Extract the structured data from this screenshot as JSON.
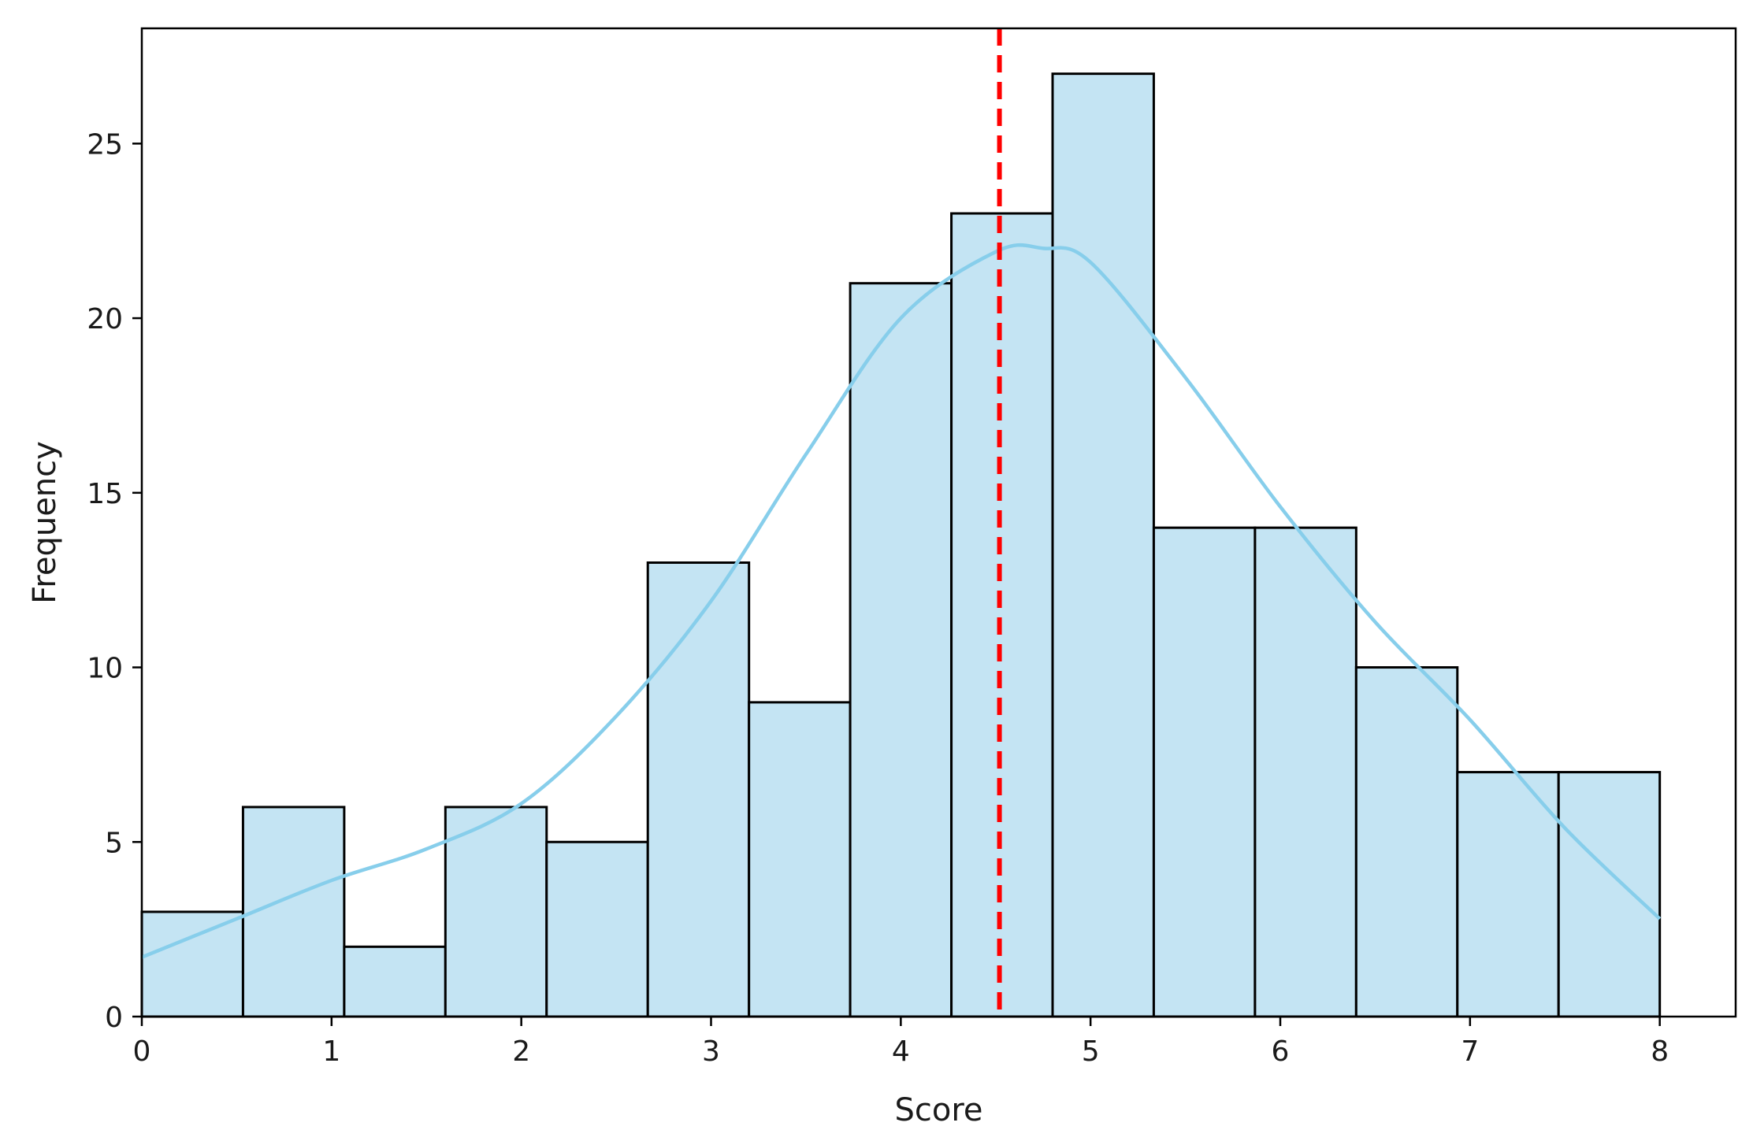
{
  "chart_data": {
    "type": "bar",
    "subtype": "histogram",
    "title": "",
    "xlabel": "Score",
    "ylabel": "Frequency",
    "xlim": [
      0,
      8.4
    ],
    "ylim": [
      0,
      28.3
    ],
    "xticks": [
      0,
      1,
      2,
      3,
      4,
      5,
      6,
      7,
      8
    ],
    "yticks": [
      0,
      5,
      10,
      15,
      20,
      25
    ],
    "bin_edges": [
      0,
      0.5333,
      1.0667,
      1.6,
      2.1333,
      2.6667,
      3.2,
      3.7333,
      4.2667,
      4.8,
      5.3333,
      5.8667,
      6.4,
      6.9333,
      7.4667,
      8.0
    ],
    "counts": [
      3,
      6,
      2,
      6,
      5,
      13,
      9,
      21,
      23,
      27,
      14,
      14,
      10,
      7,
      7
    ],
    "bar_fill": "#c4e4f3",
    "bar_edge": "#000000",
    "kde": {
      "color": "#87ceeb",
      "x": [
        0,
        0.5,
        1.0,
        1.5,
        2.0,
        2.5,
        3.0,
        3.5,
        4.0,
        4.5,
        4.75,
        5.0,
        5.5,
        6.0,
        6.5,
        7.0,
        7.5,
        8.0
      ],
      "y": [
        1.7,
        2.8,
        3.9,
        4.8,
        6.1,
        8.6,
        11.9,
        16.1,
        20.0,
        21.9,
        22.0,
        21.6,
        18.3,
        14.6,
        11.3,
        8.5,
        5.4,
        2.8
      ]
    },
    "reference_line": {
      "x": 4.52,
      "color": "#ff0000",
      "style": "dashed"
    },
    "grid": false,
    "legend": "none"
  }
}
